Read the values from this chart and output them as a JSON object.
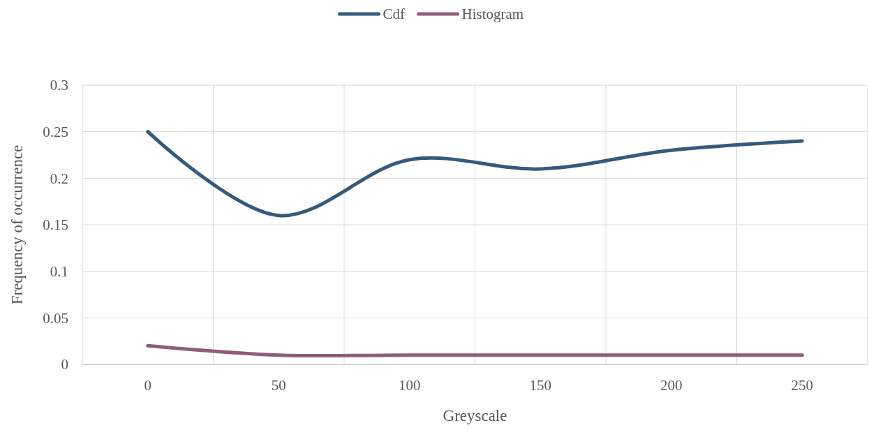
{
  "chart_data": {
    "type": "line",
    "xlabel": "Greyscale",
    "ylabel": "Frequency of occurrence",
    "categories": [
      "0",
      "50",
      "100",
      "150",
      "200",
      "250"
    ],
    "series": [
      {
        "name": "Cdf",
        "color": "#365a7c",
        "values": [
          0.25,
          0.16,
          0.22,
          0.21,
          0.23,
          0.24
        ]
      },
      {
        "name": "Histogram",
        "color": "#8f5d7c",
        "values": [
          0.02,
          0.01,
          0.01,
          0.01,
          0.01,
          0.01
        ]
      }
    ],
    "ylim": [
      0,
      0.3
    ],
    "yticks": [
      0,
      0.05,
      0.1,
      0.15,
      0.2,
      0.25,
      0.3
    ],
    "grid": true,
    "legend": "top",
    "marker": "none",
    "line_style": "solid"
  }
}
